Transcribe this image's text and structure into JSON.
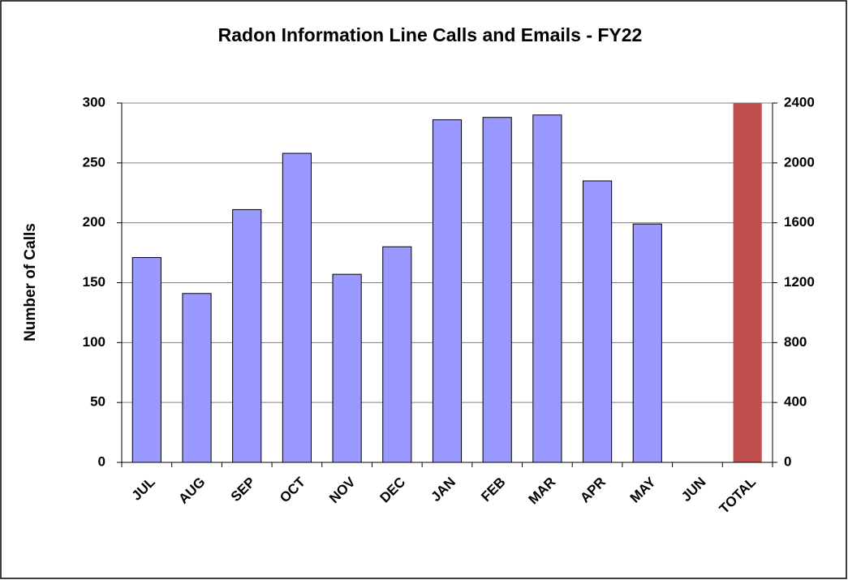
{
  "chart_data": {
    "type": "bar",
    "title": "Radon Information Line Calls and Emails - FY22",
    "y_label": "Number of Calls",
    "categories": [
      "JUL",
      "AUG",
      "SEP",
      "OCT",
      "NOV",
      "DEC",
      "JAN",
      "FEB",
      "MAR",
      "APR",
      "MAY",
      "JUN",
      "TOTAL"
    ],
    "series": [
      {
        "color": "#9999ff",
        "values": [
          171,
          141,
          211,
          258,
          157,
          180,
          286,
          288,
          290,
          235,
          199,
          null,
          null
        ]
      },
      {
        "color": "#c0504d",
        "axis": "y2",
        "values": [
          null,
          null,
          null,
          null,
          null,
          null,
          null,
          null,
          null,
          null,
          null,
          null,
          2400
        ]
      }
    ],
    "ylim": [
      0,
      300
    ],
    "yticks": [
      0,
      50,
      100,
      150,
      200,
      250,
      300
    ],
    "y2lim": [
      0,
      2400
    ],
    "y2ticks": [
      0,
      400,
      800,
      1200,
      1600,
      2000,
      2400
    ],
    "grid": true
  }
}
